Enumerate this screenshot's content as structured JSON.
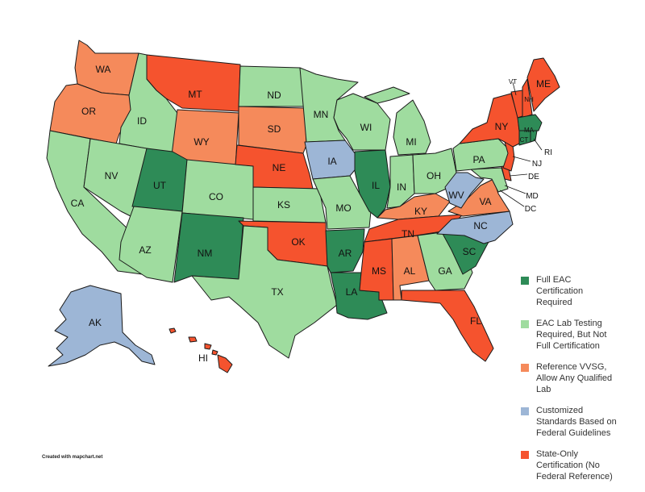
{
  "legend": {
    "items": [
      {
        "key": "full_eac",
        "color": "#2e8b57",
        "label_lines": [
          "Full EAC",
          "Certification",
          "Required"
        ]
      },
      {
        "key": "eac_lab",
        "color": "#9fdc9f",
        "label_lines": [
          "EAC Lab Testing",
          "Required, But Not",
          "Full Certification"
        ]
      },
      {
        "key": "vvsg",
        "color": "#f58a5b",
        "label_lines": [
          "Reference VVSG,",
          "Allow Any Qualified",
          "Lab"
        ]
      },
      {
        "key": "custom",
        "color": "#9db6d6",
        "label_lines": [
          "Customized",
          "Standards Based on",
          "Federal Guidelines"
        ]
      },
      {
        "key": "state_only",
        "color": "#f5532e",
        "label_lines": [
          "State-Only",
          "Certification (No",
          "Federal Reference)"
        ]
      }
    ]
  },
  "states": [
    {
      "abbr": "WA",
      "category": "vvsg"
    },
    {
      "abbr": "OR",
      "category": "vvsg"
    },
    {
      "abbr": "CA",
      "category": "eac_lab"
    },
    {
      "abbr": "ID",
      "category": "eac_lab"
    },
    {
      "abbr": "NV",
      "category": "eac_lab"
    },
    {
      "abbr": "MT",
      "category": "state_only"
    },
    {
      "abbr": "WY",
      "category": "vvsg"
    },
    {
      "abbr": "UT",
      "category": "full_eac"
    },
    {
      "abbr": "AZ",
      "category": "eac_lab"
    },
    {
      "abbr": "CO",
      "category": "eac_lab"
    },
    {
      "abbr": "NM",
      "category": "full_eac"
    },
    {
      "abbr": "ND",
      "category": "eac_lab"
    },
    {
      "abbr": "SD",
      "category": "vvsg"
    },
    {
      "abbr": "NE",
      "category": "state_only"
    },
    {
      "abbr": "KS",
      "category": "eac_lab"
    },
    {
      "abbr": "OK",
      "category": "state_only"
    },
    {
      "abbr": "TX",
      "category": "eac_lab"
    },
    {
      "abbr": "MN",
      "category": "eac_lab"
    },
    {
      "abbr": "IA",
      "category": "custom"
    },
    {
      "abbr": "MO",
      "category": "eac_lab"
    },
    {
      "abbr": "AR",
      "category": "full_eac"
    },
    {
      "abbr": "LA",
      "category": "full_eac"
    },
    {
      "abbr": "WI",
      "category": "eac_lab"
    },
    {
      "abbr": "IL",
      "category": "full_eac"
    },
    {
      "abbr": "MI",
      "category": "eac_lab"
    },
    {
      "abbr": "IN",
      "category": "eac_lab"
    },
    {
      "abbr": "OH",
      "category": "eac_lab"
    },
    {
      "abbr": "KY",
      "category": "vvsg"
    },
    {
      "abbr": "TN",
      "category": "state_only"
    },
    {
      "abbr": "MS",
      "category": "state_only"
    },
    {
      "abbr": "AL",
      "category": "vvsg"
    },
    {
      "abbr": "GA",
      "category": "eac_lab"
    },
    {
      "abbr": "FL",
      "category": "state_only"
    },
    {
      "abbr": "SC",
      "category": "full_eac"
    },
    {
      "abbr": "NC",
      "category": "custom"
    },
    {
      "abbr": "VA",
      "category": "vvsg"
    },
    {
      "abbr": "WV",
      "category": "custom"
    },
    {
      "abbr": "PA",
      "category": "eac_lab"
    },
    {
      "abbr": "NY",
      "category": "state_only"
    },
    {
      "abbr": "NJ",
      "category": "state_only"
    },
    {
      "abbr": "DE",
      "category": "state_only"
    },
    {
      "abbr": "MD",
      "category": "eac_lab"
    },
    {
      "abbr": "DC",
      "category": "eac_lab"
    },
    {
      "abbr": "CT",
      "category": "full_eac"
    },
    {
      "abbr": "RI",
      "category": "full_eac"
    },
    {
      "abbr": "MA",
      "category": "full_eac"
    },
    {
      "abbr": "VT",
      "category": "state_only"
    },
    {
      "abbr": "NH",
      "category": "state_only"
    },
    {
      "abbr": "ME",
      "category": "state_only"
    },
    {
      "abbr": "AK",
      "category": "custom"
    },
    {
      "abbr": "HI",
      "category": "state_only"
    }
  ],
  "credit": "Created with mapchart.net"
}
